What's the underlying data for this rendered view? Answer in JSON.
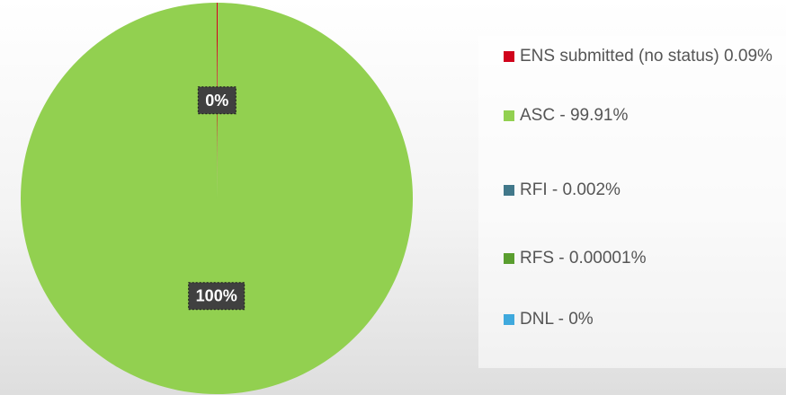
{
  "chart_data": {
    "type": "pie",
    "categories": [
      "ENS submitted (no status) 0.09%",
      "ASC - 99.91%",
      "RFI - 0.002%",
      "RFS - 0.00001%",
      "DNL - 0%"
    ],
    "values": [
      0.09,
      99.91,
      0.002,
      1e-05,
      0
    ],
    "value_labels": [
      "0%",
      "100%",
      null,
      null,
      null
    ],
    "colors": [
      "#d0021b",
      "#92d050",
      "#41788a",
      "#5a9e2f",
      "#3fa9dd"
    ],
    "legend": "right"
  }
}
